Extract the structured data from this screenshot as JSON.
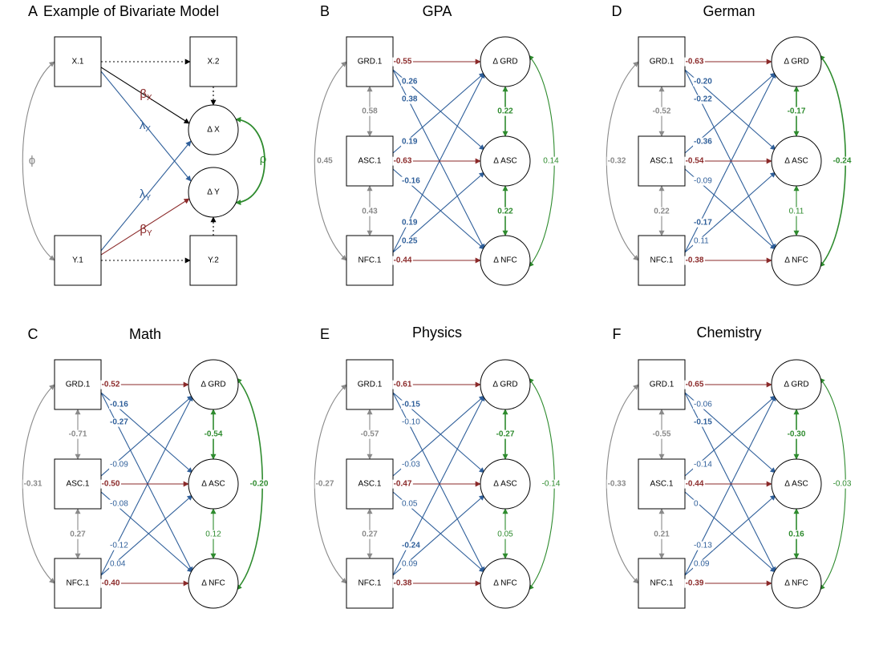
{
  "colors": {
    "red": "#8b2a2a",
    "blue": "#2f5f9a",
    "green": "#2e8b2e",
    "gray": "#8a8a8a",
    "black": "#000000"
  },
  "panel_a": {
    "letter": "A",
    "title": "Example of Bivariate Model",
    "boxes": {
      "x1": "X.1",
      "x2": "X.2",
      "y1": "Y.1",
      "y2": "Y.2"
    },
    "circles": {
      "dx": "Δ X",
      "dy": "Δ Y"
    },
    "symbols": {
      "phi": "ϕ",
      "rho": "ρ",
      "beta": "β",
      "lambda": "λ",
      "sub_x": "X",
      "sub_y": "Y"
    }
  },
  "panels": [
    {
      "letter": "B",
      "title": "GPA",
      "boxes": [
        "GRD.1",
        "ASC.1",
        "NFC.1"
      ],
      "circles": [
        "Δ GRD",
        "Δ ASC",
        "Δ NFC"
      ],
      "left_corr": {
        "top": "0.58",
        "bottom": "0.43",
        "outer": "0.45"
      },
      "auto": [
        "-0.55",
        "-0.63",
        "-0.44"
      ],
      "cross": {
        "g_a": "0.26",
        "g_n": "0.38",
        "a_g": "0.19",
        "a_n": "-0.16",
        "n_g": "0.19",
        "n_a": "0.25"
      },
      "right_corr": {
        "top": "0.22",
        "bottom": "0.22",
        "outer": "0.14"
      }
    },
    {
      "letter": "D",
      "title": "German",
      "boxes": [
        "GRD.1",
        "ASC.1",
        "NFC.1"
      ],
      "circles": [
        "Δ GRD",
        "Δ ASC",
        "Δ NFC"
      ],
      "left_corr": {
        "top": "-0.52",
        "bottom": "0.22",
        "outer": "-0.32"
      },
      "auto": [
        "-0.63",
        "-0.54",
        "-0.38"
      ],
      "cross": {
        "g_a": "-0.20",
        "g_n": "-0.22",
        "a_g": "-0.36",
        "a_n": "-0.09",
        "n_g": "-0.17",
        "n_a": "0.11"
      },
      "right_corr": {
        "top": "-0.17",
        "bottom": "0.11",
        "outer": "-0.24"
      }
    },
    {
      "letter": "C",
      "title": "Math",
      "boxes": [
        "GRD.1",
        "ASC.1",
        "NFC.1"
      ],
      "circles": [
        "Δ GRD",
        "Δ ASC",
        "Δ NFC"
      ],
      "left_corr": {
        "top": "-0.71",
        "bottom": "0.27",
        "outer": "-0.31"
      },
      "auto": [
        "-0.52",
        "-0.50",
        "-0.40"
      ],
      "cross": {
        "g_a": "-0.16",
        "g_n": "-0.27",
        "a_g": "-0.09",
        "a_n": "-0.08",
        "n_g": "-0.12",
        "n_a": "0.04"
      },
      "right_corr": {
        "top": "-0.54",
        "bottom": "0.12",
        "outer": "-0.20"
      }
    },
    {
      "letter": "E",
      "title": "Physics",
      "boxes": [
        "GRD.1",
        "ASC.1",
        "NFC.1"
      ],
      "circles": [
        "Δ GRD",
        "Δ ASC",
        "Δ NFC"
      ],
      "left_corr": {
        "top": "-0.57",
        "bottom": "0.27",
        "outer": "-0.27"
      },
      "auto": [
        "-0.61",
        "-0.47",
        "-0.38"
      ],
      "cross": {
        "g_a": "-0.15",
        "g_n": "-0.10",
        "a_g": "-0.03",
        "a_n": "0.05",
        "n_g": "-0.24",
        "n_a": "0.09"
      },
      "right_corr": {
        "top": "-0.27",
        "bottom": "0.05",
        "outer": "-0.14"
      }
    },
    {
      "letter": "F",
      "title": "Chemistry",
      "boxes": [
        "GRD.1",
        "ASC.1",
        "NFC.1"
      ],
      "circles": [
        "Δ GRD",
        "Δ ASC",
        "Δ NFC"
      ],
      "left_corr": {
        "top": "-0.55",
        "bottom": "0.21",
        "outer": "-0.33"
      },
      "auto": [
        "-0.65",
        "-0.44",
        "-0.39"
      ],
      "cross": {
        "g_a": "-0.06",
        "g_n": "-0.15",
        "a_g": "-0.14",
        "a_n": "0",
        "n_g": "-0.13",
        "n_a": "0.09"
      },
      "right_corr": {
        "top": "-0.30",
        "bottom": "0.16",
        "outer": "-0.03"
      }
    }
  ]
}
